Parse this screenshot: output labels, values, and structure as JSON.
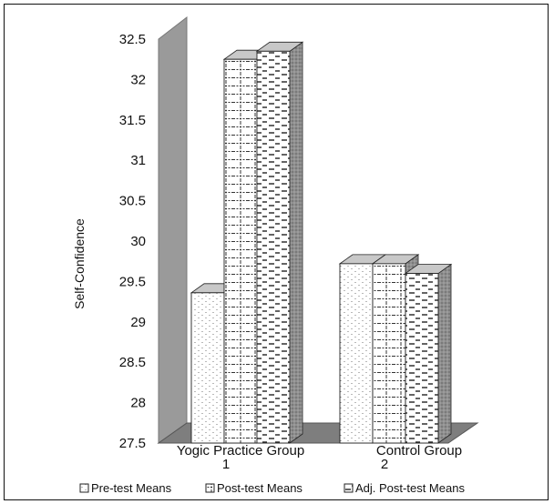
{
  "chart_data": {
    "type": "bar",
    "style": "3d-clustered",
    "title": "",
    "xlabel": "",
    "ylabel": "Self-Confidence",
    "ylim": [
      27.5,
      32.5
    ],
    "ytick_step": 0.5,
    "yticks": [
      "27.5",
      "28",
      "28.5",
      "29",
      "29.5",
      "30",
      "30.5",
      "31",
      "31.5",
      "32",
      "32.5"
    ],
    "categories": [
      "Yogic Practice Group",
      "Control Group"
    ],
    "category_numbers": [
      "1",
      "2"
    ],
    "series": [
      {
        "name": "Pre-test Means",
        "values": [
          29.36,
          29.72
        ],
        "pattern": "dots"
      },
      {
        "name": "Post-test Means",
        "values": [
          32.25,
          29.72
        ],
        "pattern": "grid"
      },
      {
        "name": "Adj. Post-test Means",
        "values": [
          32.35,
          29.6
        ],
        "pattern": "dashes"
      }
    ],
    "legend_position": "bottom",
    "colors": {
      "wall": "#9a9a9a",
      "floor": "#7e7e7e",
      "bar_face": "#ffffff",
      "bar_side": "#8f8f8f",
      "bar_top": "#c8c8c8",
      "text": "#111111"
    }
  }
}
